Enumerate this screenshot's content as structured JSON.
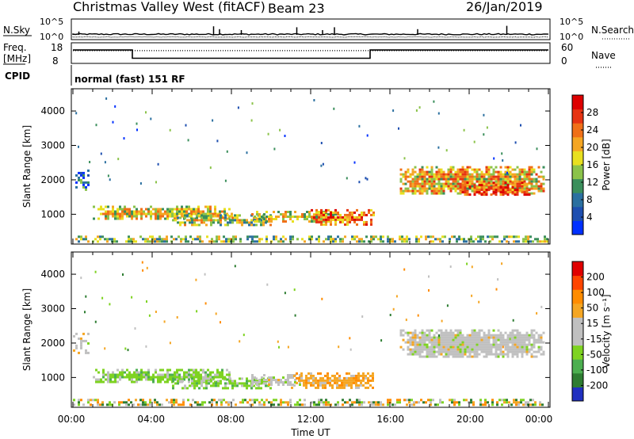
{
  "header": {
    "station": "Christmas Valley West (fitACF)",
    "beam": "Beam 23",
    "date": "26/Jan/2019"
  },
  "nsky_panel": {
    "left_label": "N.Sky",
    "right_label": "N.Search",
    "left_ticks": [
      "10^5",
      "10^0"
    ],
    "right_ticks": [
      "10^5",
      "10^0"
    ],
    "spikes": [
      {
        "x": 7.1,
        "v": 0.9
      },
      {
        "x": 7.4,
        "v": 0.6
      },
      {
        "x": 8.5,
        "v": 0.5
      },
      {
        "x": 11.3,
        "v": 0.8
      },
      {
        "x": 12.6,
        "v": 0.5
      },
      {
        "x": 13.2,
        "v": 0.8
      },
      {
        "x": 17.4,
        "v": 0.6
      },
      {
        "x": 21.9,
        "v": 0.95
      },
      {
        "x": 0.3,
        "v": 0.35
      }
    ]
  },
  "freq_panel": {
    "left_label": "Freq.",
    "unit_label": "[MHz]",
    "right_label": "Nave",
    "cpid_label": "CPID",
    "left_ticks": [
      "18",
      "8"
    ],
    "right_ticks": [
      "60",
      "0"
    ],
    "cpid_text": "normal (fast) 151 RF",
    "frequency_steps": [
      {
        "from": 0.0,
        "to": 3.0,
        "value": 14.5
      },
      {
        "from": 3.0,
        "to": 15.0,
        "value": 10.5
      },
      {
        "from": 15.0,
        "to": 24.0,
        "value": 14.5
      }
    ],
    "nave_level": 0.62
  },
  "chart_data": [
    {
      "type": "heatmap",
      "ylabel": "Slant Range [km]",
      "x_ticks": [
        "00:00",
        "04:00",
        "08:00",
        "12:00",
        "16:00",
        "20:00",
        "00:00"
      ],
      "y_ticks": [
        "1000",
        "2000",
        "3000",
        "4000"
      ],
      "xlim": [
        0,
        24
      ],
      "ylim": [
        180,
        4600
      ],
      "colorbar": {
        "label": "Power [dB]",
        "ticks": [
          "4",
          "8",
          "12",
          "16",
          "20",
          "24",
          "28"
        ],
        "colors": [
          "#0030ff",
          "#1e4fb0",
          "#2b70a0",
          "#3b8f5c",
          "#8bc34a",
          "#e8e020",
          "#f5a623",
          "#f07018",
          "#e63312",
          "#dd0000"
        ]
      },
      "echo_regions": [
        {
          "t0": 1.0,
          "t1": 8.0,
          "r0": 850,
          "r1": 1250,
          "level": 0.55
        },
        {
          "t0": 5.0,
          "t1": 10.0,
          "r0": 700,
          "r1": 1000,
          "level": 0.5
        },
        {
          "t0": 9.0,
          "t1": 13.5,
          "r0": 800,
          "r1": 1100,
          "level": 0.55
        },
        {
          "t0": 12.0,
          "t1": 15.2,
          "r0": 700,
          "r1": 1150,
          "level": 0.75
        },
        {
          "t0": 16.5,
          "t1": 23.8,
          "r0": 1600,
          "r1": 2400,
          "level": 0.6
        },
        {
          "t0": 19.5,
          "t1": 23.0,
          "r0": 1550,
          "r1": 1950,
          "level": 0.85
        },
        {
          "t0": 0.0,
          "t1": 0.8,
          "r0": 1700,
          "r1": 2300,
          "level": 0.2
        },
        {
          "t0": 0.0,
          "t1": 24.0,
          "r0": 200,
          "r1": 380,
          "level": 0.45
        }
      ]
    },
    {
      "type": "heatmap",
      "ylabel": "Slant Range [km]",
      "xlabel": "Time UT",
      "x_ticks": [
        "00:00",
        "04:00",
        "08:00",
        "12:00",
        "16:00",
        "20:00",
        "00:00"
      ],
      "y_ticks": [
        "1000",
        "2000",
        "3000",
        "4000"
      ],
      "xlim": [
        0,
        24
      ],
      "ylim": [
        180,
        4600
      ],
      "colorbar": {
        "label": "Velocity [m s⁻¹]",
        "ticks": [
          "200",
          "100",
          "50",
          "15",
          "-15",
          "-50",
          "-100",
          "-200"
        ],
        "colors": [
          "#2030c0",
          "#2e7d32",
          "#4caf50",
          "#7ed321",
          "#c0c0c0",
          "#c0c0c0",
          "#f5a623",
          "#ff8c00",
          "#ff4500",
          "#e00000"
        ]
      },
      "echo_regions": [
        {
          "t0": 1.0,
          "t1": 8.0,
          "r0": 850,
          "r1": 1250,
          "kind": "green"
        },
        {
          "t0": 5.0,
          "t1": 10.0,
          "r0": 700,
          "r1": 1000,
          "kind": "green"
        },
        {
          "t0": 9.0,
          "t1": 11.5,
          "r0": 800,
          "r1": 1100,
          "kind": "grey"
        },
        {
          "t0": 11.0,
          "t1": 15.2,
          "r0": 700,
          "r1": 1150,
          "kind": "orange"
        },
        {
          "t0": 16.5,
          "t1": 23.8,
          "r0": 1600,
          "r1": 2400,
          "kind": "grey"
        },
        {
          "t0": 0.0,
          "t1": 0.8,
          "r0": 1700,
          "r1": 2300,
          "kind": "grey"
        },
        {
          "t0": 0.0,
          "t1": 24.0,
          "r0": 200,
          "r1": 380,
          "kind": "mixed"
        }
      ]
    }
  ]
}
